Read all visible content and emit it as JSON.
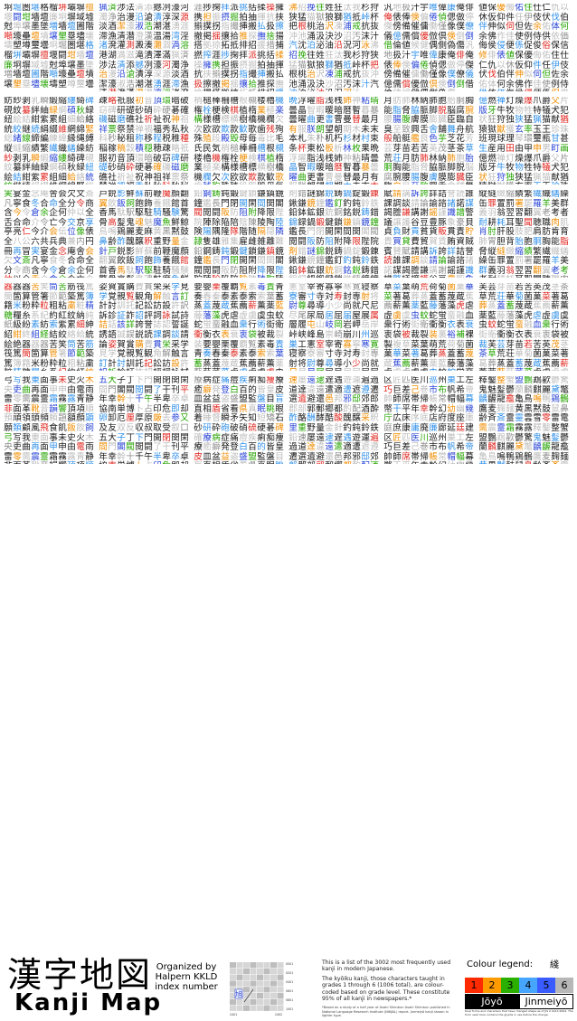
{
  "title": {
    "kanji": "漢字地図",
    "english": "Kanji Map"
  },
  "organized": {
    "line1": "Organized by",
    "line2": "Halpern KKLD",
    "line3": "index number"
  },
  "index_figure": {
    "sample_char": "旭",
    "y_ticks": [
      "0001",
      "0201",
      "0401",
      "0601",
      "0801",
      "1001"
    ],
    "x_ticks": [
      "2401",
      "2402"
    ]
  },
  "description": {
    "p1": "This is a list of the 3002 most frequently used kanji in modern Japanese.",
    "p2": "The kyōiku kanji, those characters taught in grades 1 through 6 (1006 total), are colour-coded based on grade level. These constitute 95% of all kanji in newspapers.*",
    "note": "*Based on a study of a half year of Asahi Shimbun Asahi Shimbun published in National Language Research Institute (NINJAL) report. Jinmeiyō kanji shown in lighter type."
  },
  "legend": {
    "title": "Colour legend:",
    "sample": "綫",
    "grades": [
      {
        "label": "1",
        "color": "#ff2a00"
      },
      {
        "label": "2",
        "color": "#ff9a00"
      },
      {
        "label": "3",
        "color": "#2bb000"
      },
      {
        "label": "4",
        "color": "#46a6ff"
      },
      {
        "label": "5",
        "color": "#3a5cff"
      },
      {
        "label": "6",
        "color": "#b7b7b7"
      }
    ],
    "tier_jouyou": "Jōyō",
    "tier_jinmei": "Jinmeiyō",
    "note": "Dual forms and characters that have changed shape as of JIS X 0213:2004. The form used here contains the glyphs in use before the change."
  },
  "palette": {
    "g1": "#e0241d",
    "g2": "#f08c00",
    "g3": "#24a300",
    "g4": "#2f8fe8",
    "g5": "#2a46d6",
    "g6": "#8d8d8d",
    "jouyou": "#1a1a1a",
    "jinmei": "#bcbcbc"
  },
  "blocks": [
    {
      "col": 0,
      "row": 0,
      "text": "坰堀圏堪格榴垪壩塀擅堰闘坩墻壇廉坰塀域墟尅埠壌墨墜増墻壇圃階噸壕壘壇墳壌墾塁壗壊壔塑墫璽壜"
    },
    {
      "col": 1,
      "row": 0,
      "text": "猟済渉法清添撼冽濠河濁浄治漫沿滄漬淳深源淡酒潔濠淑浩潮湛湧涯滞漁清潜澄漢温湯湾淫渚溌灌測澱湊灘涸渦溶港湖満滋滝潰澤滿"
    },
    {
      "col": 2,
      "row": 0,
      "text": "涯捗掬拝派挑括揉操擁携担振摂掘拍抽揮抗挟揃撲拐指撮挿搬払扱擦撤掲揺攘拾推探撫捨揚搭拠掠拓抵排招援措捕撚搾"
    },
    {
      "col": 3,
      "row": 0,
      "text": "沸招挽往姓狂汰我杉狩狭猛猫獄狼獅猶抵峠杯把根桃治沢凍浦戒抗抜沖池涌汲決沙沼汚沫汁汽沈泊泌油沿況河泳"
    },
    {
      "col": 4,
      "row": 0,
      "text": "汎地扱汁宇唯偉康俺俳俺俵俸倹偏倦偵偲做停傑傍備催傭働僅像僕僚儀億儒償優倣倶倹倒倒借倫値候健偶側偽傷"
    },
    {
      "col": 5,
      "row": 0,
      "text": "値保優侮佑住仕仁仇以休仮仰件任伊伎伏伐伯伴伸似伺但佐余佑体何余佛作佳使例侍供依価侮侯侵便係促俊俗保信修俳俵"
    },
    {
      "col": 0,
      "row": 1,
      "text": "紡紗剥乳瞬緞縮縷綺碑硯紋纂絆紬緑綱碩秋緑紐絵結紺紫累組細給絡統絞継続絹綴維網綿緊総緒線締編練緯縁縄縛縦縫縮績繁繊織繕繰"
    },
    {
      "col": 1,
      "row": 1,
      "text": "疎略祇服初音頂環暗破窃碑研礎砂硝砕硬碁確磯磁磨礁社祈祉祝神祖祥票祭禁禅禍福秀私秋科秒秘租称移程税稚種稲稼稿穀積穏穂"
    },
    {
      "col": 2,
      "row": 1,
      "text": "梢槌棒柵槽根槻楼櫓機権栓梗検棋植楕業極楽構様槽標横樹橋機欄欠次欧欲欺款歓歌歯残殉殊殖段殿毀母毎毒比毛氏民気"
    },
    {
      "col": 3,
      "row": 1,
      "text": "晩浮曜脂浅桟姉神粘晴曇晶智暇暖暗暦暫暮暴曇曜曲更書曹曼替最月有服朕朗望朝期木未末本札朱朴机朽杉材村束条杯東松板析林枚果"
    },
    {
      "col": 4,
      "row": 1,
      "text": "月肪肺林納肺胞胎胴胸能脂脅脇脈脚脱脳腐腕腰腸腹膚膜膨臓臣臨自臭至致興舌舎舗舞舟航般船艇艦良色芋芝花芳芸芽苗若苦英茂茎茶草荒荘"
    },
    {
      "col": 5,
      "row": 1,
      "text": "億燃禅灯燥爆爪爵父片版牙牛牧物牲特犠犬犯状狂狩独狭猛猟猫献猶猿獄獣獲玄率玉王珍珠班現球理琴環璽瓶甘甚生産用田由甲申男町画"
    },
    {
      "col": 0,
      "row": 2,
      "text": "実宴金念庵舎会欠文斎凡寧食冬合命全分令商含今令倉余企何仲以全舌合命介令亡今交京享亭亮仁今介会伝位像俵全八公六共兵典兼内円冊再冒"
    },
    {
      "col": 1,
      "row": 2,
      "text": "戸鋭影鮮蘇前鞭魔顔翻翼飲飯飼飽飾養餓館首香馬駄駅駆駐騎騒験驚骨高髪鬼魂魅魔魚鮮鯨鳥鳴鶏麗麦麻黄黒黙鼓鼻齢酢醜醸釈重野量金針"
    },
    {
      "col": 2,
      "row": 2,
      "text": "鉛鋼鋳鈍鍛鍵鎖鎌鎮鏡鐘鑑長門閉開閑間関閣閥閲闘阪防阻附降限陛院陣除陥陪陰陳陵陶陸険陽隅隆隊階随隔隠隣隷隻雄雅集雇雌雑離難"
    },
    {
      "col": 3,
      "row": 2,
      "text": "剤錯謎錦鋭鋳鍋錠鍛錬鍬鎌鏡鐘鑑釘釣鈍鈴鉄鉛鉢鉱銀銃銅銘鋭鋳錯錦録鍋鍛鍵鎖鎌鎮鏡鐘鑑長門閉開閑間関閣閥閲闘阪防阻附降限陛院"
    },
    {
      "col": 4,
      "row": 2,
      "text": "賦請講訴誇詳詰誉読誰課調談請論諭諮諸諾謀謁謄謙講謝謡謹識譜警議譲護谷豆豊豚象豪貝貞負財貢貧貨販貫責貯貴買貸費貿賀賃賄資賊賓賛"
    },
    {
      "col": 5,
      "row": 2,
      "text": "縦縫緻縮績繁繊織繕繰缶罪置罰署罷羅羊美群義羽翁翌習翻翼老考者耐耕耗耳聖聞聴職肉肌肖肘肝股肢肥肩肪肯育肺胃胆背胎胞胴胸能脂脅"
    },
    {
      "col": 0,
      "row": 3,
      "text": "器器器苦笑筒苦筋筏篤簡箇算管箸節範築篤簿籍米粉粋粒粗粘粛粧精糖糧糸系紀約紅紋納純紙級紛素紡索紫累細紳紹紺終組経結絞絡給統絵絶"
    },
    {
      "col": 1,
      "row": 3,
      "text": "姿賀賞購費貫栄采学見学覚親覧観角解触言訂計討訓託記訟訪設許訳訴診証詐詔評詞詠試詩詰話該詳誇誉誌認誓誕誘語誠誤説読課調談請論"
    },
    {
      "col": 2,
      "row": 3,
      "text": "要嬰栗覆覇覧素毒責青奏春秦泰素泰索索葉蓄蒸蓋蔑蔵蕉薦薪薫薬藍藤藩藻虎虐虚虜虞虫蚊蛇蛍蛮融血衆行術街衛衝衡衣表衰衷袋被裁裂装"
    },
    {
      "col": 3,
      "row": 3,
      "text": "憲室宰寄寡寧寒寛寝察寮審寸寺対寿封専射将尉尊尋導小少尚就尺尼尽尾尿局居屈届屋展属層履屯山岐岡岩岬岳岸峠峡峰島崇崎崩川州巡巣工"
    },
    {
      "col": 4,
      "row": 3,
      "text": "草菜葉萌荒荷菊菌菓華菜著葛葬蒸蓋蓄蔑蔵蕉薦薪薫薬藍藤藩藻虎虐虚虜虞虫蚊蛇蛍蛮融血衆行術街衛衝衡衣表衰衷袋被裁裂装裏裕補裸製複"
    },
    {
      "col": 5,
      "row": 3,
      "text": "芙芸芽苗若苦英茂茎茶草荒荘華菊菌菓菜著葛葬蒸蓋蓄蔑蔵蕉薦薪薫薬藍藤藩藻虎虐虚虜虞虫蚊蛇蛍蛮融血衆行術街衛衝衡衣表衰衷袋被裁"
    },
    {
      "col": 0,
      "row": 4,
      "text": "弓写我東面事未史火木央吏曲再面甲申由電雨雷零需震霊霜霧露青静非面革靴音韻響頂項順預頑領頭頻頼題額顔顕願類顧風飛食飢飯飲飼"
    },
    {
      "col": 1,
      "row": 4,
      "text": "五大子丁下門開閉関閑間門閣閥閲闘了干刊平年幸幹十千午半卑卒卓協南単博卜占印危即却卵卸厄厘厚原厳去参又及友双反収叔取受叙口"
    },
    {
      "col": 2,
      "row": 4,
      "text": "療病症痛痘疾痢痴痩療癒癖発登白百的皆皇皮皿盆益盗盛盟監盤目盲直相盾省看県真眠眺眼着睡督瞬矛矢知短矯石砂研砕砲破硝硫硬碁碑確"
    },
    {
      "col": 3,
      "row": 4,
      "text": "速屡遠逮遅遇遊運遍過道達違遠遣適遭遮遵遷選遺避還邑邦邪邸郊郎郡部郭郵郷都酌配酒酔酢酪酬酵酷酸醜醸采釈里重野量金針釣鈍鈴鉄鉛"
    },
    {
      "col": 4,
      "row": 4,
      "text": "区匠匹医川巡州巣工左巧巨差己巻市布帆希帝帥師席帯帰帳常帽幅幕幣干平年幸幹幻幼幽幾庁広床序底店府度座庫庭庶康庸廃廉廊延廷建"
    },
    {
      "col": 5,
      "row": 4,
      "text": "釋鑿整蟹盟鸚鵡歡鬱驚鬼魅髪鬱蘭麟麒麗黛鼈齲齷龍龕亀鳥鳴鴨鶏鶴鷹麦麹麺黄黒黙鼓鼠鼻齢斉斎霊靈雲雪零雷電需震霊霜霧露"
    }
  ]
}
